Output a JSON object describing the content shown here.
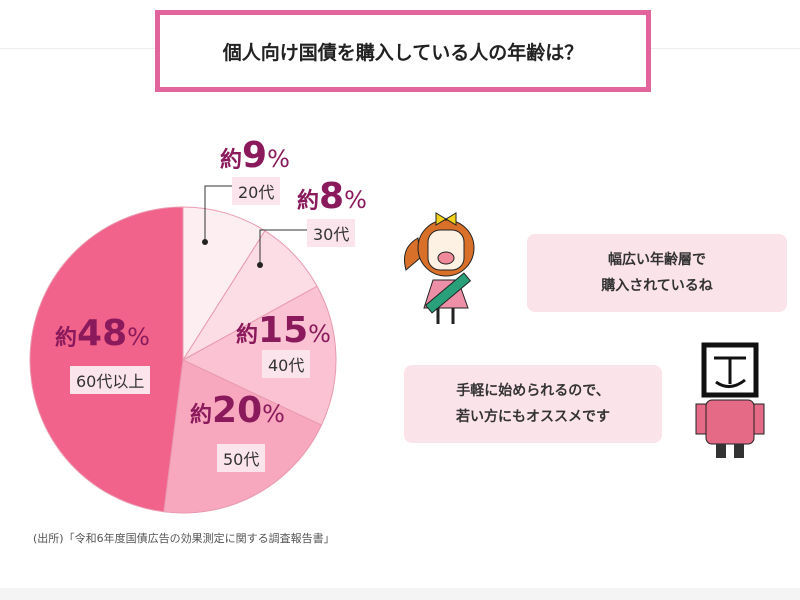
{
  "title": "個人向け国債を購入している人の年齢は？",
  "chart_data": {
    "type": "pie",
    "start": "top",
    "direction": "clockwise",
    "slices": [
      {
        "label": "20代",
        "value": 9,
        "value_text": "9",
        "color": "#fdeef2"
      },
      {
        "label": "30代",
        "value": 8,
        "value_text": "8",
        "color": "#fcdce5"
      },
      {
        "label": "40代",
        "value": 15,
        "value_text": "15",
        "color": "#fac2d2"
      },
      {
        "label": "50代",
        "value": 20,
        "value_text": "20",
        "color": "#f8a8be"
      },
      {
        "label": "60代以上",
        "value": 48,
        "value_text": "48",
        "color": "#f2638b"
      }
    ],
    "prefix": "約",
    "unit": "%"
  },
  "bubbles": [
    {
      "lines": [
        "幅広い年齢層で",
        "購入されているね"
      ]
    },
    {
      "lines": [
        "手軽に始められるので、",
        "若い方にもオススメです"
      ]
    }
  ],
  "source": "(出所)「令和6年度国債広告の効果測定に関する調査報告書」",
  "colors": {
    "accent": "#e2649c",
    "label_text": "#8a1a5c",
    "bubble": "#fbe3ea"
  }
}
